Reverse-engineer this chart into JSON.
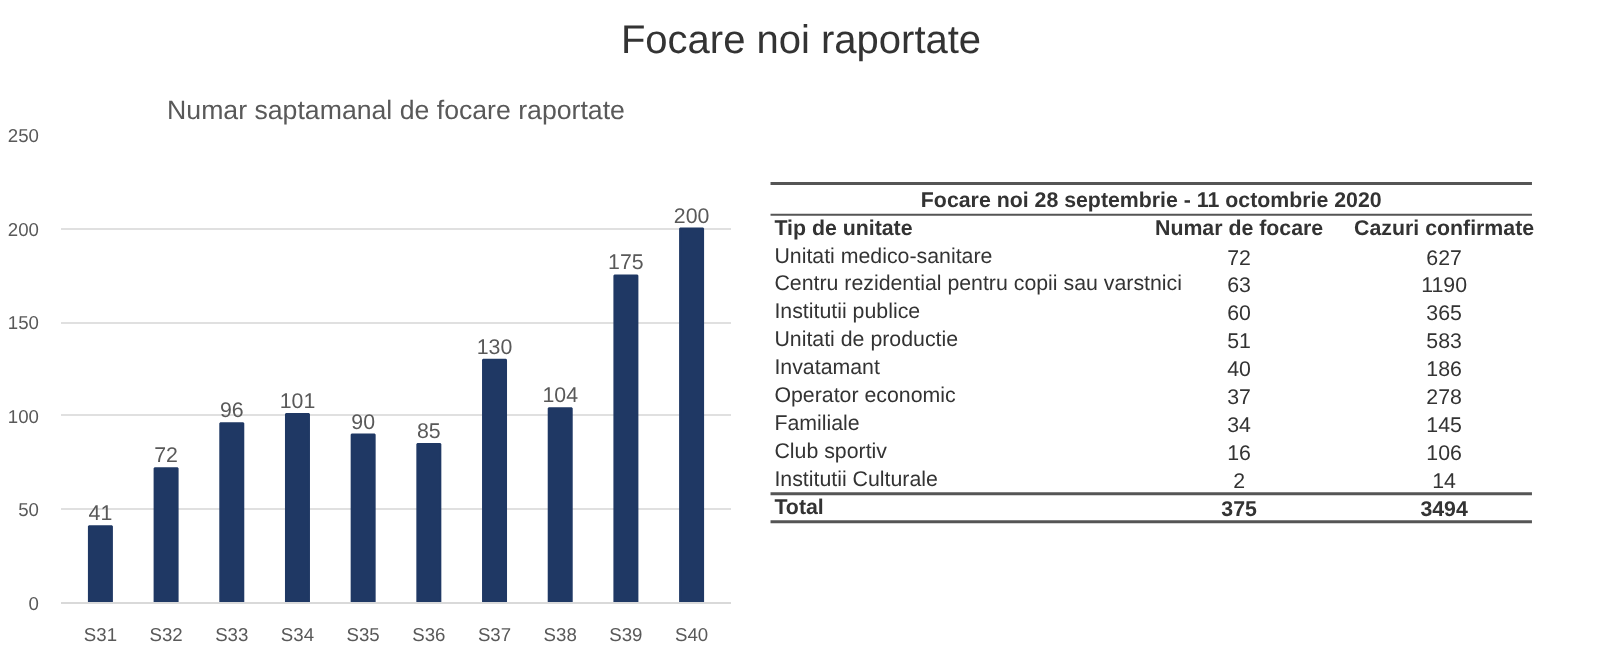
{
  "chart_data": [
    {
      "type": "bar",
      "title": "Focare noi raportate",
      "subtitle": "Numar saptamanal de focare raportate",
      "categories": [
        "S31",
        "S32",
        "S33",
        "S34",
        "S35",
        "S36",
        "S37",
        "S38",
        "S39",
        "S40"
      ],
      "values": [
        41,
        72,
        96,
        101,
        90,
        85,
        130,
        104,
        175,
        200
      ],
      "color": "#1f3864",
      "ylim": [
        0,
        250
      ],
      "yticks": [
        0,
        50,
        100,
        150,
        200,
        250
      ],
      "grid": "y",
      "data_labels": true
    },
    {
      "type": "other",
      "title": "Focare noi 28 septembrie - 11 octombrie 2020",
      "annotations": [
        "Tip de unitate"
      ],
      "categories": [
        "Unitati medico-sanitare",
        "Centru rezidential pentru copii sau varstnici",
        "Institutii publice",
        "Unitati de productie",
        "Invatamant",
        "Operator economic",
        "Familiale",
        "Club sportiv",
        "Institutii Culturale",
        "Total"
      ],
      "series": [
        {
          "name": "Numar de focare",
          "values": [
            72,
            63,
            60,
            51,
            40,
            37,
            34,
            16,
            2,
            375
          ]
        },
        {
          "name": "Cazuri confirmate",
          "values": [
            627,
            1190,
            365,
            583,
            186,
            278,
            145,
            106,
            14,
            3494
          ]
        }
      ],
      "data_labels": true
    }
  ]
}
